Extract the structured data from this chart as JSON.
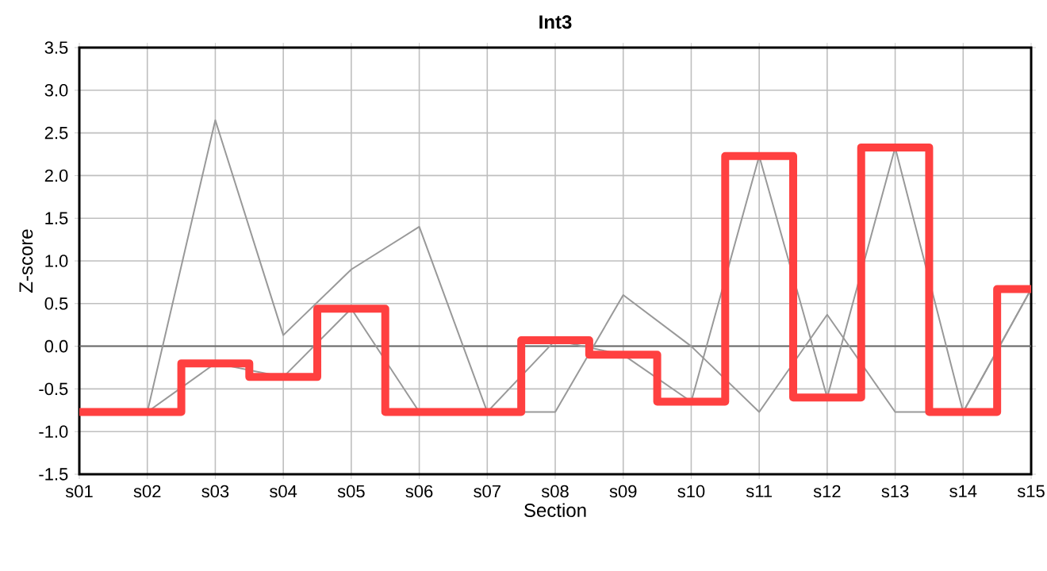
{
  "chart_data": {
    "type": "line",
    "title": "Int3",
    "xlabel": "Section",
    "ylabel": "Z-score",
    "categories": [
      "s01",
      "s02",
      "s03",
      "s04",
      "s05",
      "s06",
      "s07",
      "s08",
      "s09",
      "s10",
      "s11",
      "s12",
      "s13",
      "s14",
      "s15"
    ],
    "series": [
      {
        "color": "#999999",
        "values": [
          -0.77,
          -0.77,
          2.65,
          0.13,
          0.9,
          1.4,
          -0.77,
          -0.77,
          0.6,
          0.0,
          -0.77,
          0.37,
          -0.77,
          -0.77,
          0.67
        ]
      },
      {
        "color": "#999999",
        "values": [
          -0.77,
          -0.77,
          -0.2,
          -0.36,
          0.44,
          -0.77,
          -0.77,
          0.07,
          -0.1,
          -0.65,
          2.23,
          -0.6,
          2.33,
          -0.77,
          0.67
        ]
      },
      {
        "type": "step",
        "color": "#ff4040",
        "values": [
          -0.77,
          -0.77,
          -0.2,
          -0.36,
          0.44,
          -0.77,
          -0.77,
          0.07,
          -0.1,
          -0.65,
          2.23,
          -0.6,
          2.33,
          -0.77,
          0.67
        ]
      }
    ],
    "ylim": [
      -1.5,
      3.5
    ],
    "yticks": [
      {
        "value": -1.5,
        "label": "-1.5"
      },
      {
        "value": -1.0,
        "label": "-1.0"
      },
      {
        "value": -0.5,
        "label": "-0.5"
      },
      {
        "value": 0,
        "label": "0.0"
      },
      {
        "value": 0.5,
        "label": "0.5"
      },
      {
        "value": 1.0,
        "label": "1.0"
      },
      {
        "value": 1.5,
        "label": "1.5"
      },
      {
        "value": 2.0,
        "label": "2.0"
      },
      {
        "value": 2.5,
        "label": "2.5"
      },
      {
        "value": 3.0,
        "label": "3.0"
      },
      {
        "value": 3.5,
        "label": "3.5"
      }
    ],
    "ref_lines": [
      {
        "axis": "y",
        "value": 0,
        "color": "#666666"
      }
    ],
    "grid": true,
    "marker": "none",
    "line_style": "solid"
  }
}
